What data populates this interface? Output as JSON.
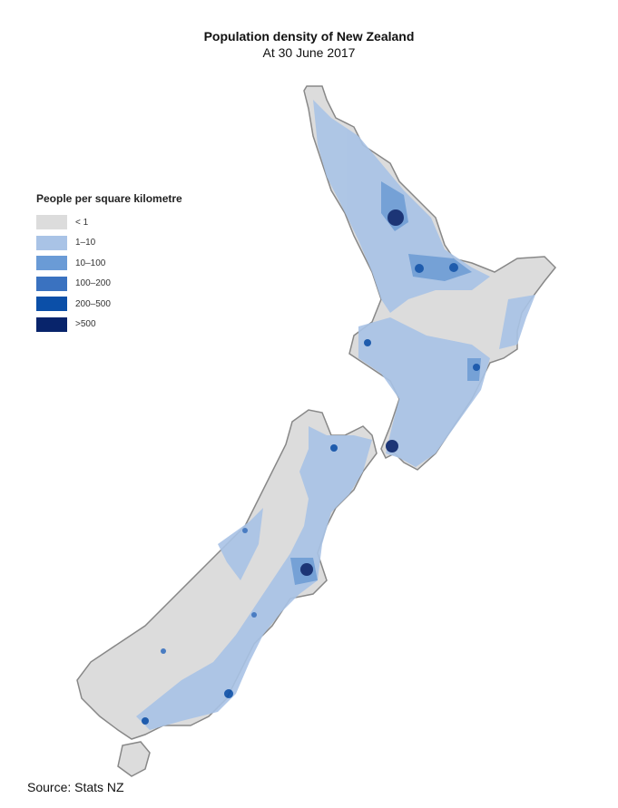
{
  "title": "Population density of New Zealand",
  "subtitle": "At 30 June 2017",
  "legend": {
    "title": "People per square kilometre",
    "items": [
      {
        "label": "< 1",
        "color": "#dcdcdc"
      },
      {
        "label": "1–10",
        "color": "#a9c3e6"
      },
      {
        "label": "10–100",
        "color": "#6a9bd6"
      },
      {
        "label": "100–200",
        "color": "#3a72c0"
      },
      {
        "label": "200–500",
        "color": "#0b4fa8"
      },
      {
        "label": ">500",
        "color": "#08246b"
      }
    ]
  },
  "source": "Source: Stats NZ"
}
